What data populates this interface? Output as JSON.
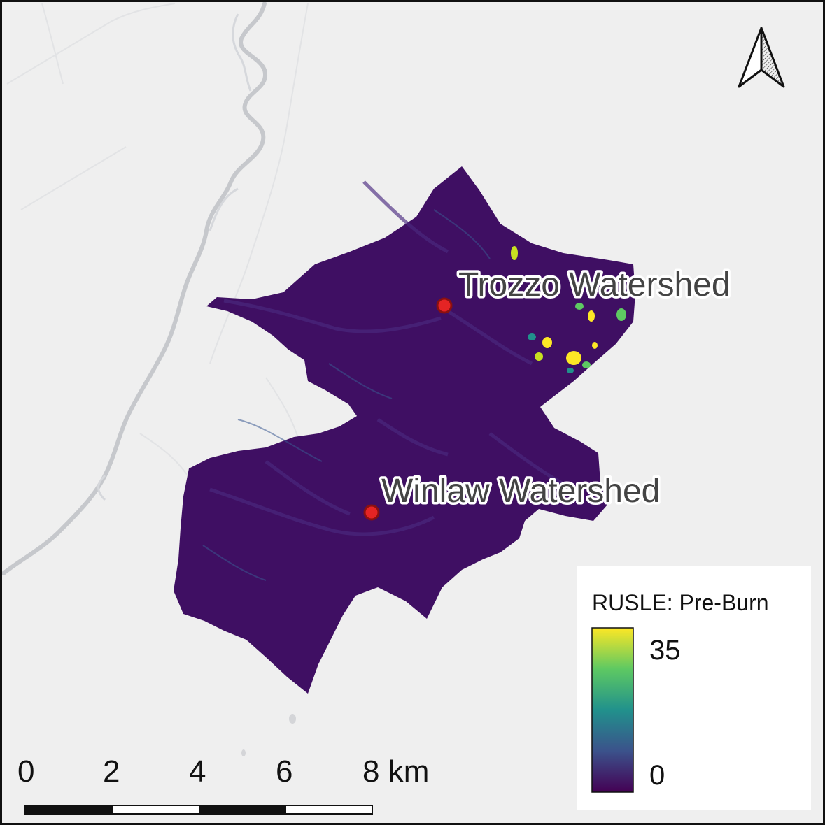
{
  "map": {
    "sites": [
      {
        "name": "Trozzo Watershed"
      },
      {
        "name": "Winlaw Watershed"
      }
    ],
    "legend": {
      "title": "RUSLE: Pre-Burn",
      "max_label": "35",
      "min_label": "0",
      "colormap": [
        "#440154",
        "#3b528b",
        "#21918c",
        "#5ec962",
        "#fde725"
      ]
    },
    "scale_bar": {
      "labels": [
        "0",
        "2",
        "4",
        "6",
        "8 km"
      ]
    },
    "colors": {
      "background": "#efefef",
      "watershed": "#3f0f63",
      "river": "#c6c8cc",
      "marker": "#e52424",
      "marker_outline": "#8a1010"
    },
    "north_arrow": "north-arrow-icon"
  }
}
